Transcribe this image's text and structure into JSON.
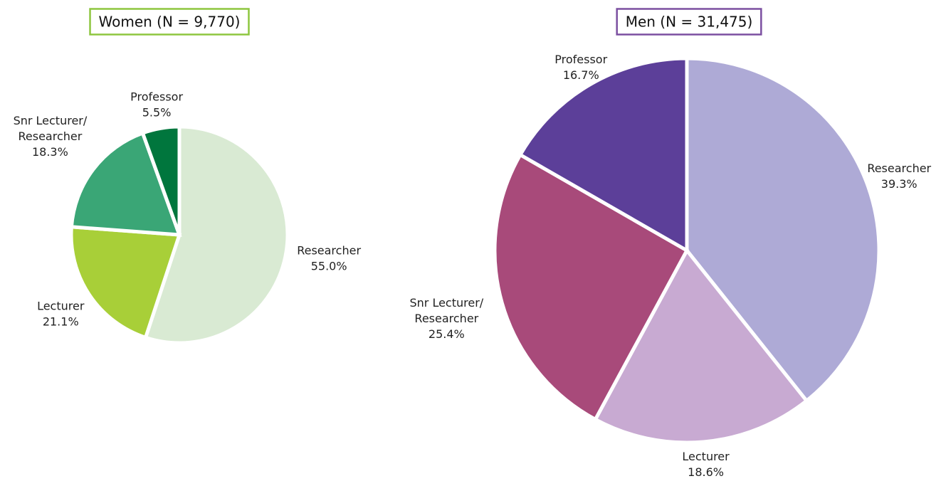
{
  "chart_data": [
    {
      "type": "pie",
      "title": "Women (N = 9,770)",
      "border_color": "#8dc63f",
      "categories": [
        "Researcher",
        "Lecturer",
        "Snr Lecturer/ Researcher",
        "Professor"
      ],
      "values": [
        55.0,
        21.1,
        18.3,
        5.5
      ],
      "value_labels": [
        "55.0%",
        "21.1%",
        "18.3%",
        "5.5%"
      ],
      "colors": [
        "#d9ead3",
        "#a8cf38",
        "#3aa676",
        "#00763d"
      ]
    },
    {
      "type": "pie",
      "title": "Men (N = 31,475)",
      "border_color": "#7b4fa0",
      "categories": [
        "Researcher",
        "Lecturer",
        "Snr Lecturer/ Researcher",
        "Professor"
      ],
      "values": [
        39.3,
        18.6,
        25.4,
        16.7
      ],
      "value_labels": [
        "39.3%",
        "18.6%",
        "25.4%",
        "16.7%"
      ],
      "colors": [
        "#aeaad6",
        "#c8aad2",
        "#a84a7a",
        "#5c3f99"
      ]
    }
  ]
}
